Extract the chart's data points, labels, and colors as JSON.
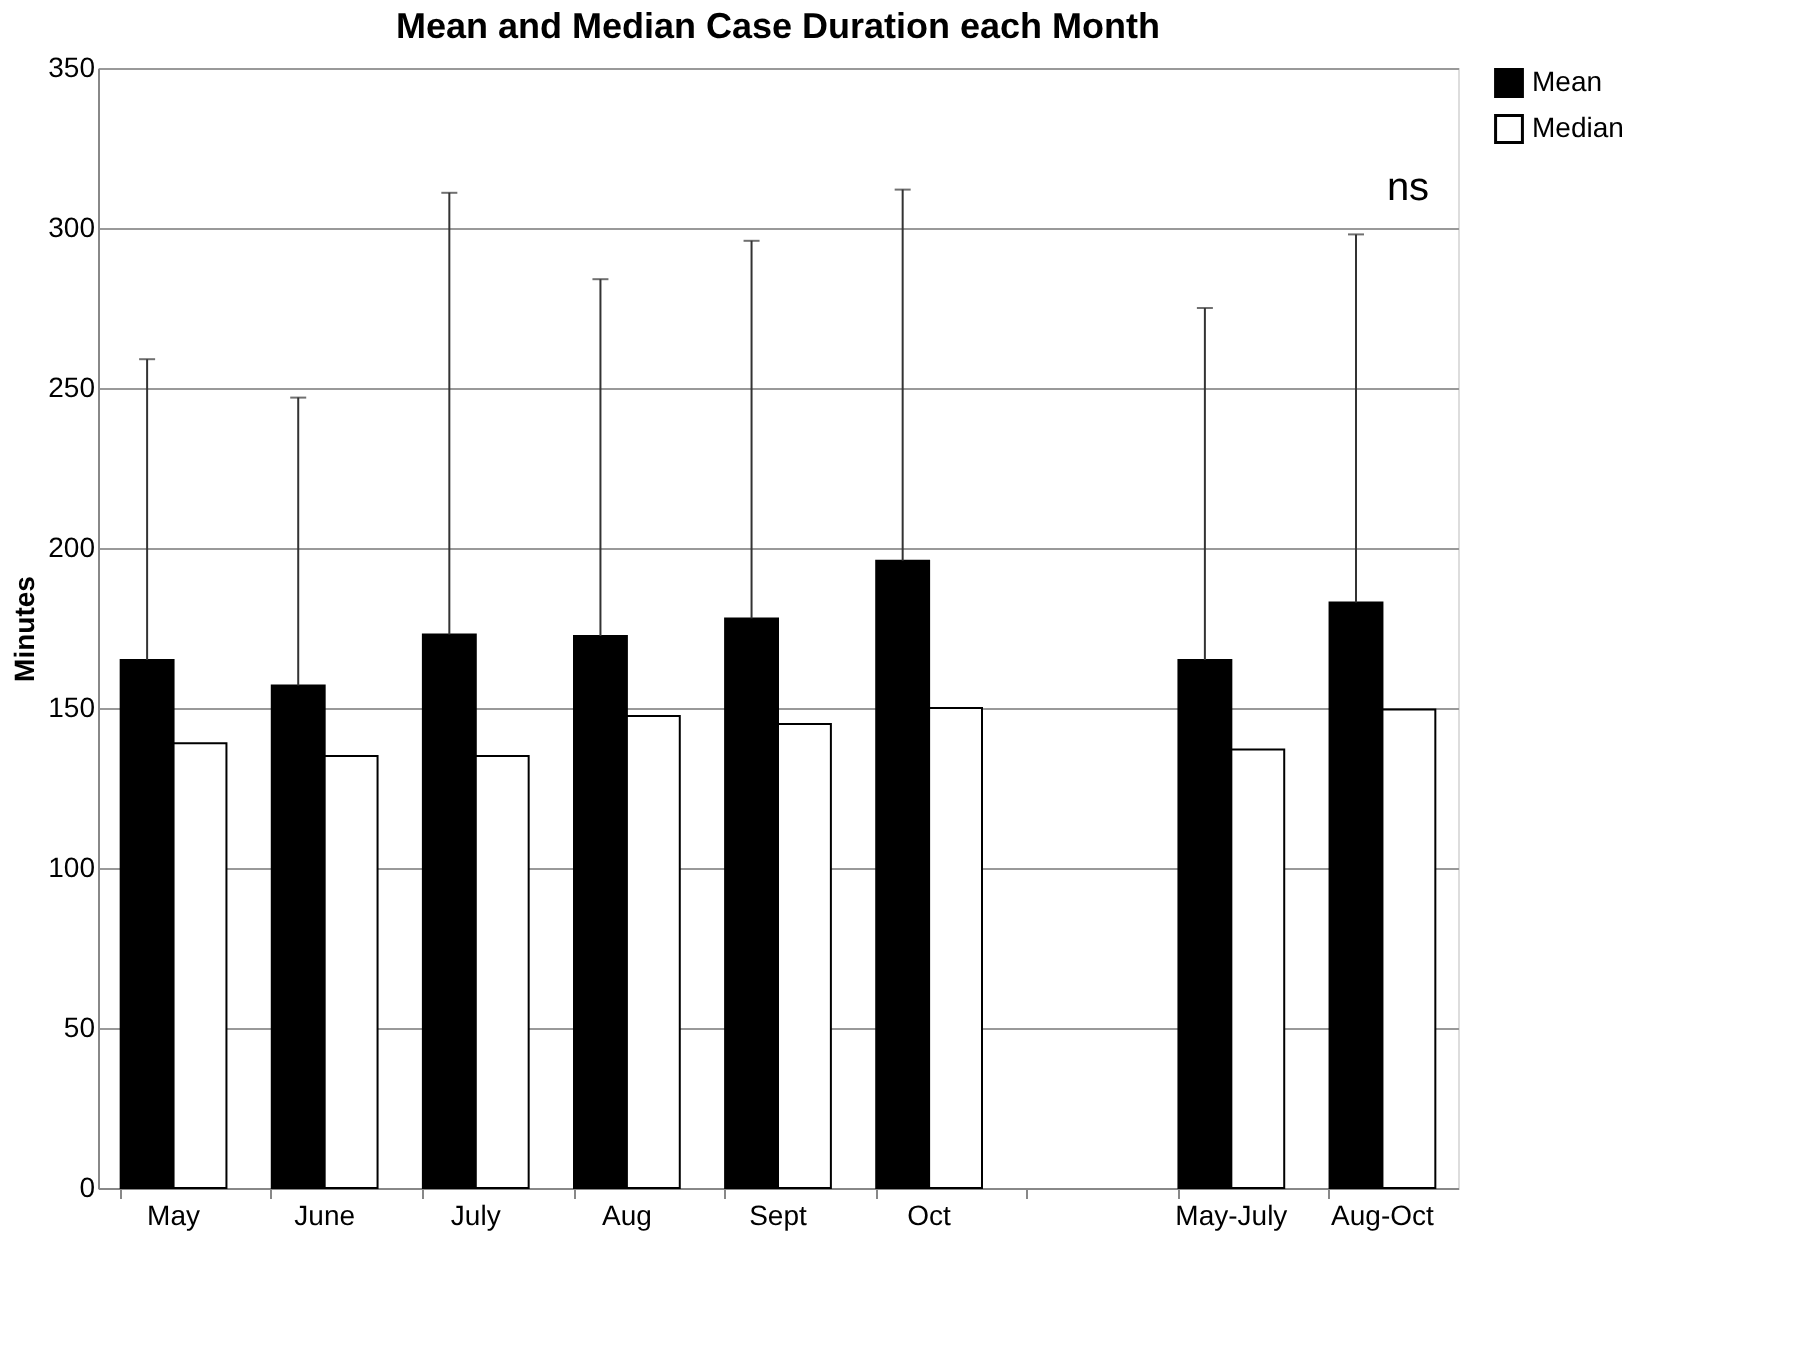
{
  "chart_data": {
    "type": "bar",
    "title": "Mean and Median Case Duration each Month",
    "ylabel": "Minutes",
    "categories": [
      "May",
      "June",
      "July",
      "Aug",
      "Sept",
      "Oct",
      null,
      "May-July",
      "Aug-Oct"
    ],
    "series": [
      {
        "name": "Mean",
        "color": "#000000",
        "values": [
          165,
          157,
          173,
          172.5,
          178,
          196,
          null,
          165,
          183
        ],
        "errors": [
          [
            165,
            259
          ],
          [
            157,
            247
          ],
          [
            173,
            311
          ],
          [
            172.5,
            284
          ],
          [
            178,
            296
          ],
          [
            196,
            312
          ],
          null,
          [
            165,
            275
          ],
          [
            183,
            298
          ]
        ]
      },
      {
        "name": "Median",
        "color": "#ffffff",
        "values": [
          139,
          135,
          135,
          147.5,
          145,
          150,
          null,
          137,
          149.5
        ]
      }
    ],
    "ylim": [
      0,
      350
    ],
    "yticks": [
      0,
      50,
      100,
      150,
      200,
      250,
      300,
      350
    ],
    "grid": "y",
    "legend": "right",
    "annotations": [
      "ns"
    ]
  }
}
